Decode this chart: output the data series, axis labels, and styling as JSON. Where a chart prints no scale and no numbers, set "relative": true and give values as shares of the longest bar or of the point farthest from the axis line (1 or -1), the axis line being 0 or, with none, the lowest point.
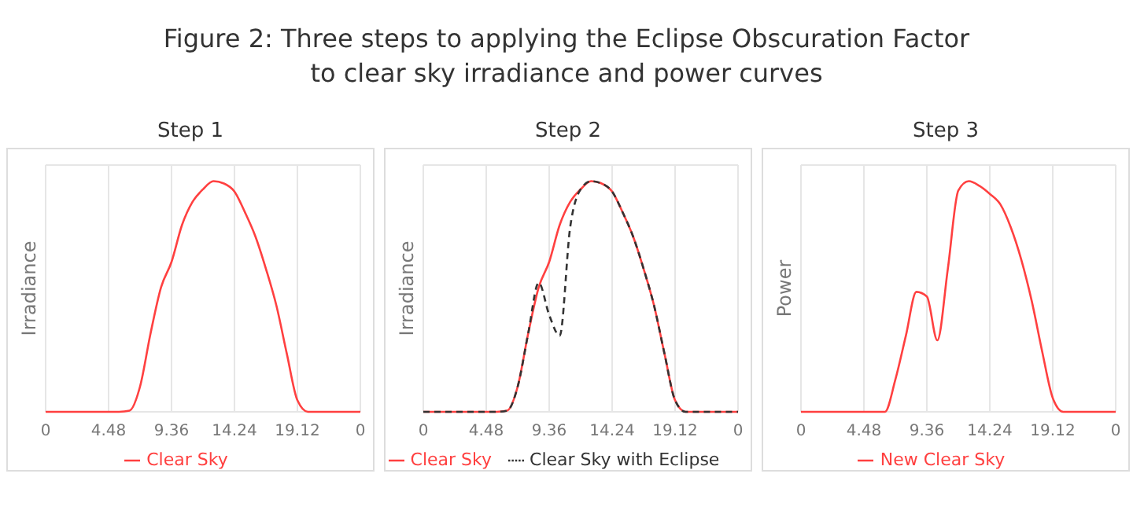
{
  "chart_data": [
    {
      "type": "line",
      "title": "Figure 2: Three steps to applying the Eclipse Obscuration Factor to clear sky irradiance and power curves",
      "subtitle": "Step 1",
      "ylabel": "Irradiance",
      "relative": true,
      "grid": true,
      "legend": "bottom",
      "marker": "none",
      "categories": [
        "0",
        null,
        null,
        null,
        null,
        null,
        "4.48",
        null,
        null,
        null,
        null,
        null,
        "9.36",
        null,
        null,
        null,
        null,
        null,
        "14.24",
        null,
        null,
        null,
        null,
        null,
        "19.12",
        null,
        null,
        null,
        null,
        null,
        "0"
      ],
      "series": [
        {
          "name": "Clear Sky",
          "color": "#ff4040",
          "line_style": "solid",
          "values": [
            0,
            0,
            0,
            0,
            0,
            0,
            0,
            0,
            0.005,
            0.11,
            0.34,
            0.54,
            0.65,
            0.81,
            0.91,
            0.965,
            1,
            0.99,
            0.955,
            0.865,
            0.76,
            0.62,
            0.46,
            0.25,
            0.05,
            0,
            0,
            0,
            0,
            0,
            0
          ]
        }
      ]
    },
    {
      "type": "line",
      "subtitle": "Step 2",
      "ylabel": "Irradiance",
      "relative": true,
      "grid": true,
      "legend": "bottom",
      "marker": "none",
      "categories": [
        "0",
        null,
        null,
        null,
        null,
        null,
        "4.48",
        null,
        null,
        null,
        null,
        null,
        "9.36",
        null,
        null,
        null,
        null,
        null,
        "14.24",
        null,
        null,
        null,
        null,
        null,
        "19.12",
        null,
        null,
        null,
        null,
        null,
        "0"
      ],
      "series": [
        {
          "name": "Clear Sky",
          "color": "#ff4040",
          "line_style": "solid",
          "values": [
            0,
            0,
            0,
            0,
            0,
            0,
            0,
            0,
            0.005,
            0.11,
            0.34,
            0.54,
            0.65,
            0.81,
            0.91,
            0.965,
            1,
            0.99,
            0.955,
            0.865,
            0.76,
            0.62,
            0.46,
            0.25,
            0.05,
            0,
            0,
            0,
            0,
            0,
            0
          ]
        },
        {
          "name": "Clear Sky with Eclipse",
          "color": "#333333",
          "line_style": "dashed",
          "values": [
            0,
            0,
            0,
            0,
            0,
            0,
            0,
            0,
            0.005,
            0.11,
            0.34,
            0.56,
            0.42,
            0.33,
            0.8,
            0.965,
            1,
            0.99,
            0.955,
            0.865,
            0.76,
            0.62,
            0.46,
            0.25,
            0.05,
            0,
            0,
            0,
            0,
            0,
            0
          ]
        }
      ]
    },
    {
      "type": "line",
      "subtitle": "Step 3",
      "ylabel": "Power",
      "relative": true,
      "grid": true,
      "legend": "bottom",
      "marker": "none",
      "categories": [
        "0",
        null,
        null,
        null,
        null,
        null,
        "4.48",
        null,
        null,
        null,
        null,
        null,
        "9.36",
        null,
        null,
        null,
        null,
        null,
        "14.24",
        null,
        null,
        null,
        null,
        null,
        "19.12",
        null,
        null,
        null,
        null,
        null,
        "0"
      ],
      "series": [
        {
          "name": "New Clear Sky",
          "color": "#ff4040",
          "line_style": "solid",
          "values": [
            0,
            0,
            0,
            0,
            0,
            0,
            0,
            0,
            0,
            0.14,
            0.33,
            0.52,
            0.5,
            0.31,
            0.62,
            0.96,
            1,
            0.98,
            0.945,
            0.9,
            0.8,
            0.66,
            0.48,
            0.26,
            0.06,
            0,
            0,
            0,
            0,
            0,
            0
          ]
        }
      ]
    }
  ]
}
